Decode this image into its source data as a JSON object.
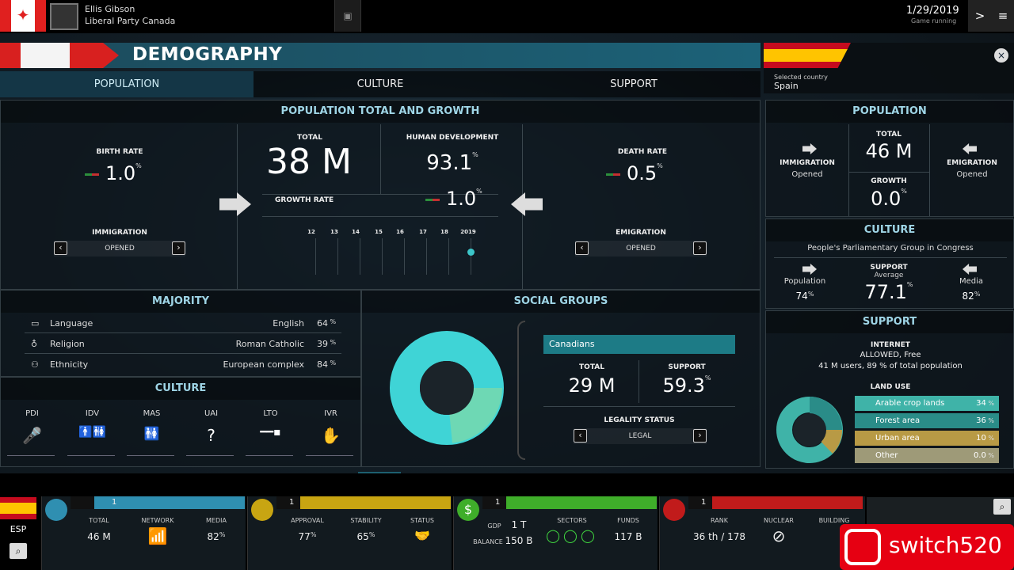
{
  "topbar": {
    "player_name": "Ellis Gibson",
    "player_party": "Liberal Party Canada",
    "date": "1/29/2019",
    "date_status": "Game running",
    "next_glyph": ">",
    "menu_glyph": "≡"
  },
  "demography": {
    "title": "DEMOGRAPHY",
    "tabs": [
      "POPULATION",
      "CULTURE",
      "SUPPORT"
    ],
    "total_growth": {
      "header": "POPULATION TOTAL AND GROWTH",
      "birth_rate_label": "BIRTH RATE",
      "birth_rate_value": "1.0",
      "total_label": "TOTAL",
      "total_value": "38 M",
      "hd_label": "HUMAN DEVELOPMENT",
      "hd_value": "93.1",
      "death_rate_label": "DEATH RATE",
      "death_rate_value": "0.5",
      "growth_rate_label": "GROWTH RATE",
      "growth_rate_value": "1.0",
      "pct": "%",
      "timeline_years": [
        "12",
        "13",
        "14",
        "15",
        "16",
        "17",
        "18",
        "2019"
      ],
      "immigration_label": "IMMIGRATION",
      "immigration_value": "OPENED",
      "emigration_label": "EMIGRATION",
      "emigration_value": "OPENED"
    },
    "majority": {
      "header": "MAJORITY",
      "rows": [
        {
          "label": "Language",
          "value": "English",
          "pct": "64"
        },
        {
          "label": "Religion",
          "value": "Roman Catholic",
          "pct": "39"
        },
        {
          "label": "Ethnicity",
          "value": "European complex",
          "pct": "84"
        }
      ]
    },
    "culture": {
      "header": "CULTURE",
      "dims": [
        "PDI",
        "IDV",
        "MAS",
        "UAI",
        "LTO",
        "IVR"
      ]
    },
    "social_groups": {
      "header": "SOCIAL GROUPS",
      "group_name": "Canadians",
      "total_label": "TOTAL",
      "total_value": "29 M",
      "support_label": "SUPPORT",
      "support_value": "59.3",
      "legality_label": "LEGALITY STATUS",
      "legality_value": "LEGAL"
    }
  },
  "selected": {
    "caption": "Selected country",
    "country": "Spain",
    "population": {
      "header": "POPULATION",
      "total_label": "TOTAL",
      "total_value": "46 M",
      "growth_label": "GROWTH",
      "growth_value": "0.0",
      "immigration_label": "IMMIGRATION",
      "immigration_value": "Opened",
      "emigration_label": "EMIGRATION",
      "emigration_value": "Opened"
    },
    "culture": {
      "header": "CULTURE",
      "group": "People's Parliamentary Group in Congress",
      "support_label": "SUPPORT",
      "support_sub": "Average",
      "support_value": "77.1",
      "population_label": "Population",
      "population_pct": "74",
      "media_label": "Media",
      "media_pct": "82"
    },
    "support": {
      "header": "SUPPORT",
      "internet_label": "INTERNET",
      "internet_value": "ALLOWED, Free",
      "internet_users": "41 M users, 89 % of total population",
      "land_use_label": "LAND USE",
      "land": [
        {
          "label": "Arable crop lands",
          "pct": "34",
          "color": "#3fb3a8"
        },
        {
          "label": "Forest area",
          "pct": "36",
          "color": "#2a8c88"
        },
        {
          "label": "Urban area",
          "pct": "10",
          "color": "#b89a45"
        },
        {
          "label": "Other",
          "pct": "0.0",
          "color": "#9e9a78"
        }
      ]
    }
  },
  "bottom": {
    "country_code": "ESP",
    "panels": [
      {
        "num": "1",
        "color": "#2f8fb1",
        "l1": "TOTAL",
        "v1": "46 M",
        "l2": "NETWORK",
        "l3": "MEDIA",
        "v3": "82"
      },
      {
        "num": "1",
        "color": "#c8a512",
        "l1": "APPROVAL",
        "v1": "77",
        "l2": "STABILITY",
        "v2": "65",
        "l3": "STATUS"
      },
      {
        "num": "1",
        "color": "#3fae2a",
        "l1": "GDP",
        "v1": "1 T",
        "lb": "BALANCE",
        "vb": "150 B",
        "l2": "SECTORS",
        "l3": "FUNDS",
        "v3": "117 B"
      },
      {
        "num": "1",
        "color": "#c11b1b",
        "l1": "RANK",
        "v1": "36 th / 178",
        "l2": "NUCLEAR",
        "l3": "BUILDING"
      }
    ],
    "watermark": "switch520"
  }
}
